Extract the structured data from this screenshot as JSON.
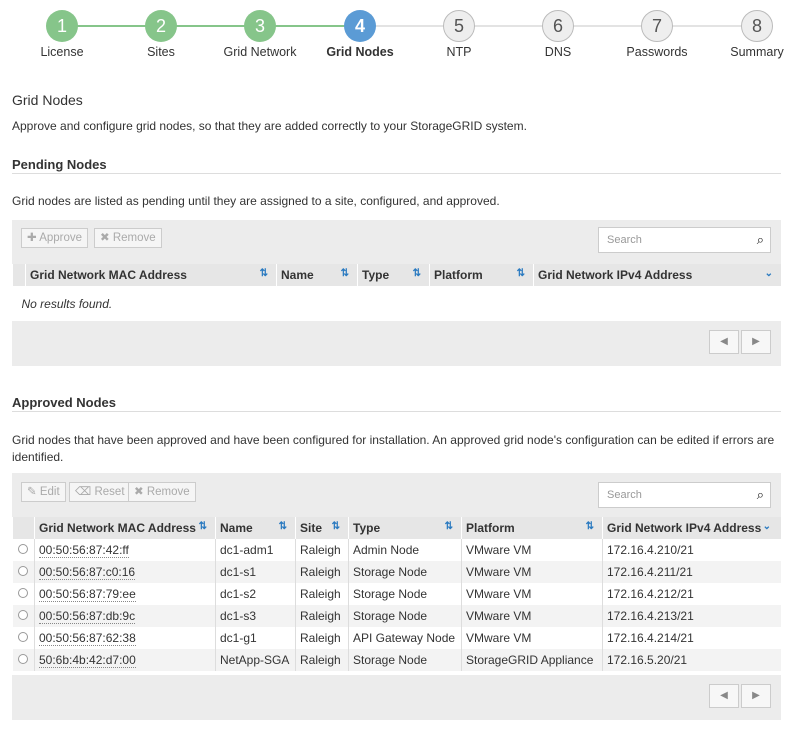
{
  "wizard": {
    "steps": [
      {
        "num": "1",
        "label": "License",
        "state": "complete"
      },
      {
        "num": "2",
        "label": "Sites",
        "state": "complete"
      },
      {
        "num": "3",
        "label": "Grid Network",
        "state": "complete"
      },
      {
        "num": "4",
        "label": "Grid Nodes",
        "state": "current"
      },
      {
        "num": "5",
        "label": "NTP",
        "state": "todo"
      },
      {
        "num": "6",
        "label": "DNS",
        "state": "todo"
      },
      {
        "num": "7",
        "label": "Passwords",
        "state": "todo"
      },
      {
        "num": "8",
        "label": "Summary",
        "state": "todo"
      }
    ]
  },
  "page": {
    "title": "Grid Nodes",
    "description": "Approve and configure grid nodes, so that they are added correctly to your StorageGRID system."
  },
  "pending": {
    "heading": "Pending Nodes",
    "description": "Grid nodes are listed as pending until they are assigned to a site, configured, and approved.",
    "approve_label": "Approve",
    "remove_label": "Remove",
    "search_placeholder": "Search",
    "columns": [
      "Grid Network MAC Address",
      "Name",
      "Type",
      "Platform",
      "Grid Network IPv4 Address"
    ],
    "empty_text": "No results found."
  },
  "approved": {
    "heading": "Approved Nodes",
    "description": "Grid nodes that have been approved and have been configured for installation. An approved grid node's configuration can be edited if errors are identified.",
    "edit_label": "Edit",
    "reset_label": "Reset",
    "remove_label": "Remove",
    "search_placeholder": "Search",
    "columns": [
      "Grid Network MAC Address",
      "Name",
      "Site",
      "Type",
      "Platform",
      "Grid Network IPv4 Address"
    ],
    "rows": [
      [
        "00:50:56:87:42:ff",
        "dc1-adm1",
        "Raleigh",
        "Admin Node",
        "VMware VM",
        "172.16.4.210/21"
      ],
      [
        "00:50:56:87:c0:16",
        "dc1-s1",
        "Raleigh",
        "Storage Node",
        "VMware VM",
        "172.16.4.211/21"
      ],
      [
        "00:50:56:87:79:ee",
        "dc1-s2",
        "Raleigh",
        "Storage Node",
        "VMware VM",
        "172.16.4.212/21"
      ],
      [
        "00:50:56:87:db:9c",
        "dc1-s3",
        "Raleigh",
        "Storage Node",
        "VMware VM",
        "172.16.4.213/21"
      ],
      [
        "00:50:56:87:62:38",
        "dc1-g1",
        "Raleigh",
        "API Gateway Node",
        "VMware VM",
        "172.16.4.214/21"
      ],
      [
        "50:6b:4b:42:d7:00",
        "NetApp-SGA",
        "Raleigh",
        "Storage Node",
        "StorageGRID Appliance",
        "172.16.5.20/21"
      ]
    ]
  },
  "colors": {
    "complete": "#86c58a",
    "current": "#5b9bd5",
    "sort": "#2a7ac0"
  }
}
